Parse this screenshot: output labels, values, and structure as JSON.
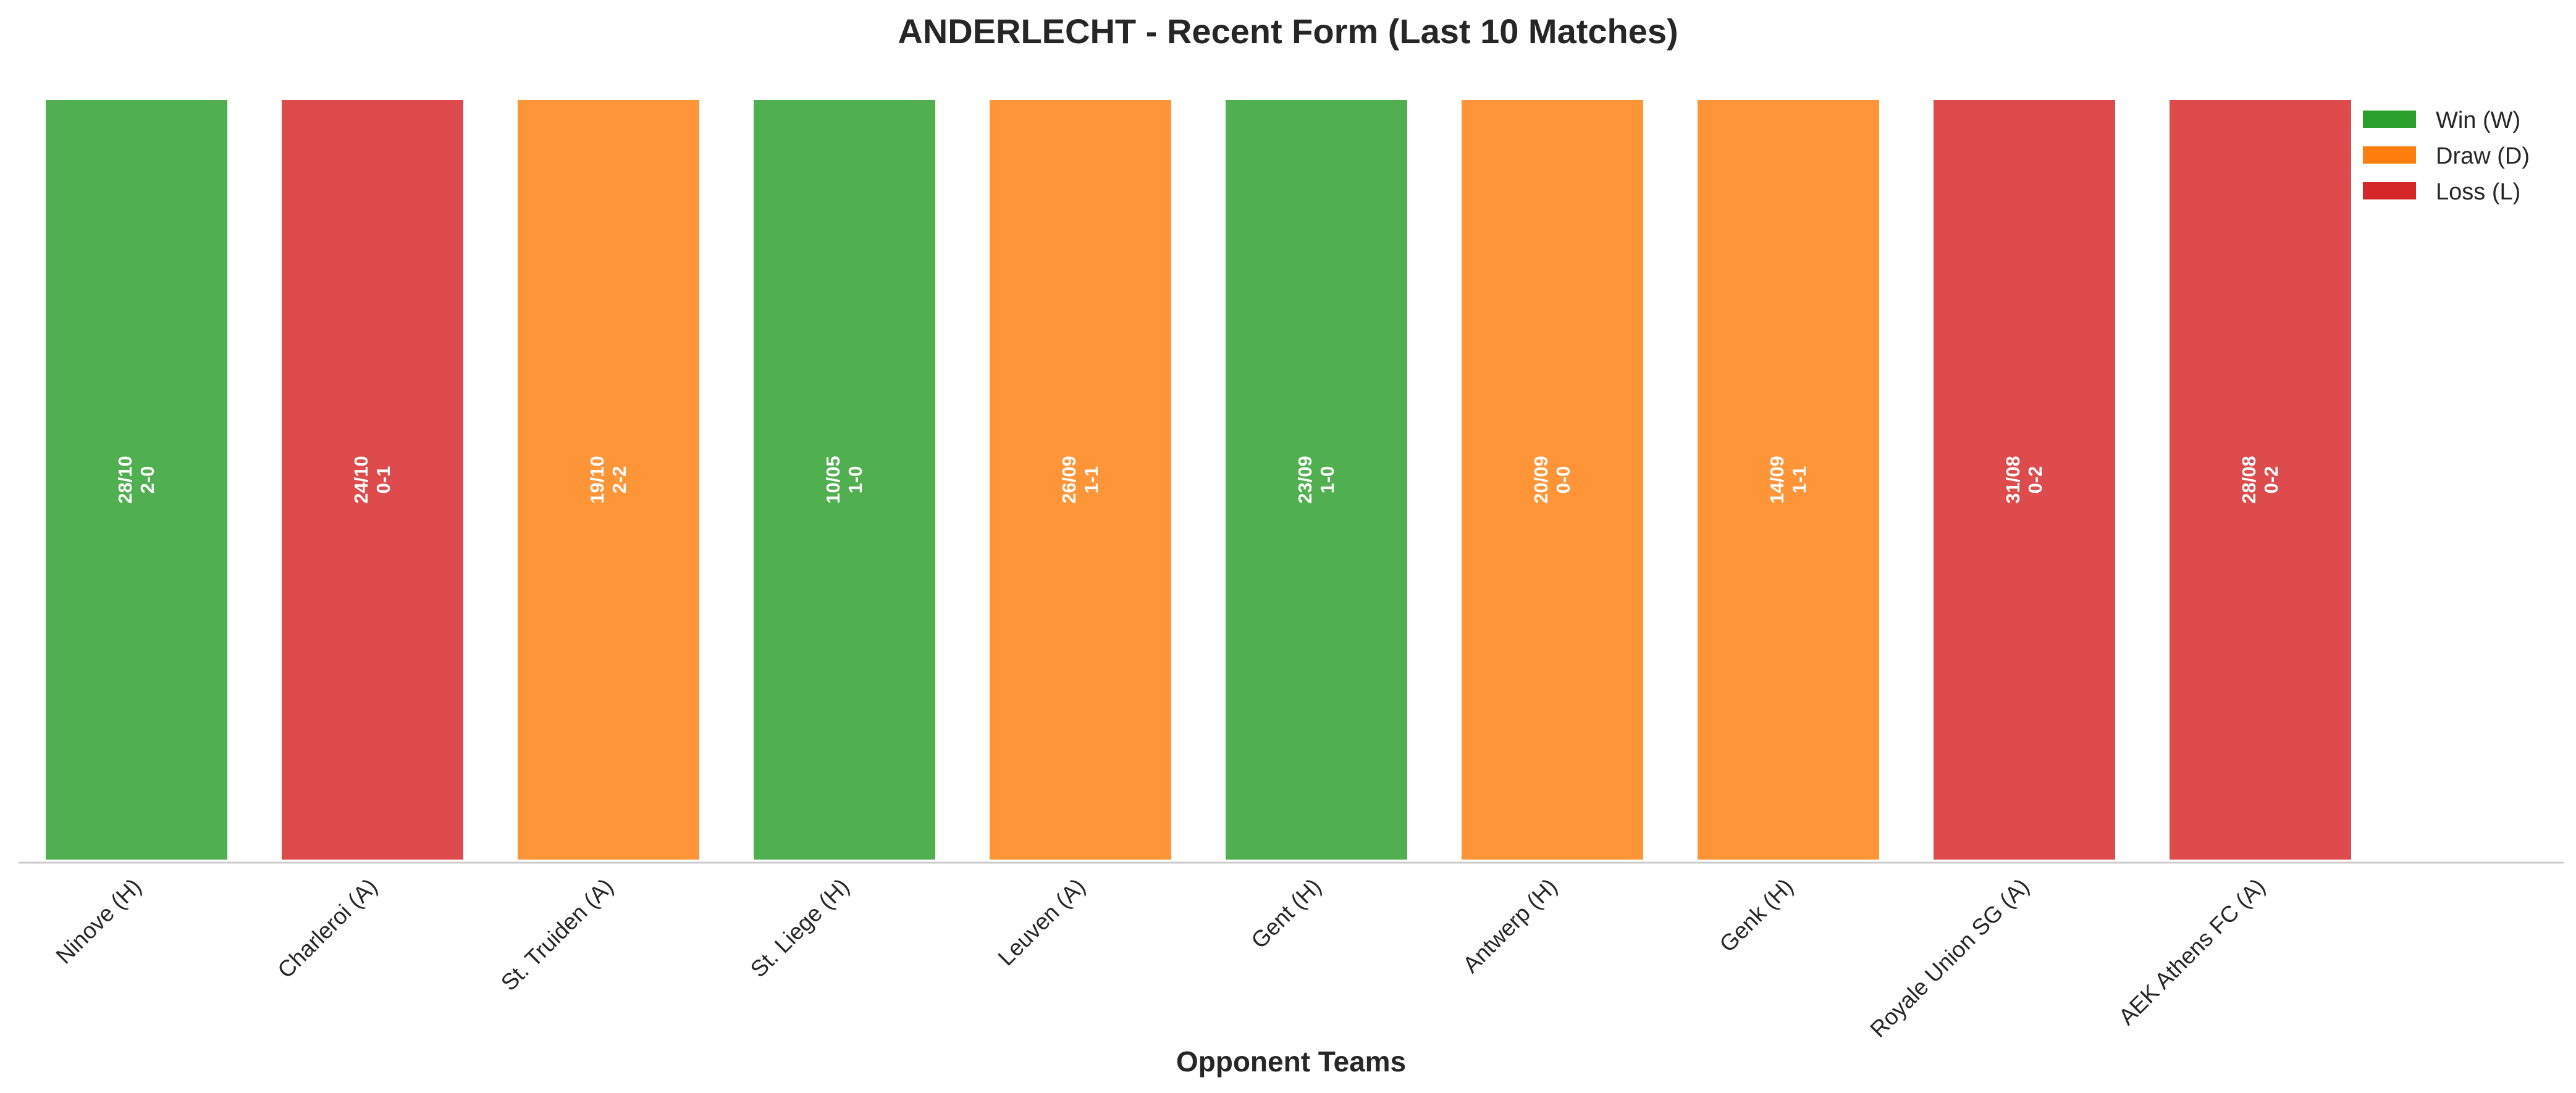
{
  "colors": {
    "W": "#2ca02c",
    "D": "#ff7f0e",
    "L": "#d62728"
  },
  "chart_data": {
    "type": "bar",
    "title": "ANDERLECHT - Recent Form (Last 10 Matches)",
    "xlabel": "Opponent Teams",
    "ylabel": "",
    "grid": false,
    "legend_position": "top-right",
    "legend": [
      {
        "key": "W",
        "label": "Win (W)"
      },
      {
        "key": "D",
        "label": "Draw (D)"
      },
      {
        "key": "L",
        "label": "Loss (L)"
      }
    ],
    "categories": [
      "Ninove (H)",
      "Charleroi (A)",
      "St. Truiden (A)",
      "St. Liege (H)",
      "Leuven (A)",
      "Gent (H)",
      "Antwerp (H)",
      "Genk (H)",
      "Royale Union SG (A)",
      "AEK Athens FC (A)"
    ],
    "values": [
      1,
      1,
      1,
      1,
      1,
      1,
      1,
      1,
      1,
      1
    ],
    "results": [
      "W",
      "L",
      "D",
      "W",
      "D",
      "W",
      "D",
      "D",
      "L",
      "L"
    ],
    "dates": [
      "28/10",
      "24/10",
      "19/10",
      "10/05",
      "26/09",
      "23/09",
      "20/09",
      "14/09",
      "31/08",
      "28/08"
    ],
    "scores": [
      "2-0",
      "0-1",
      "2-2",
      "1-0",
      "1-1",
      "1-0",
      "0-0",
      "1-1",
      "0-2",
      "0-2"
    ]
  }
}
